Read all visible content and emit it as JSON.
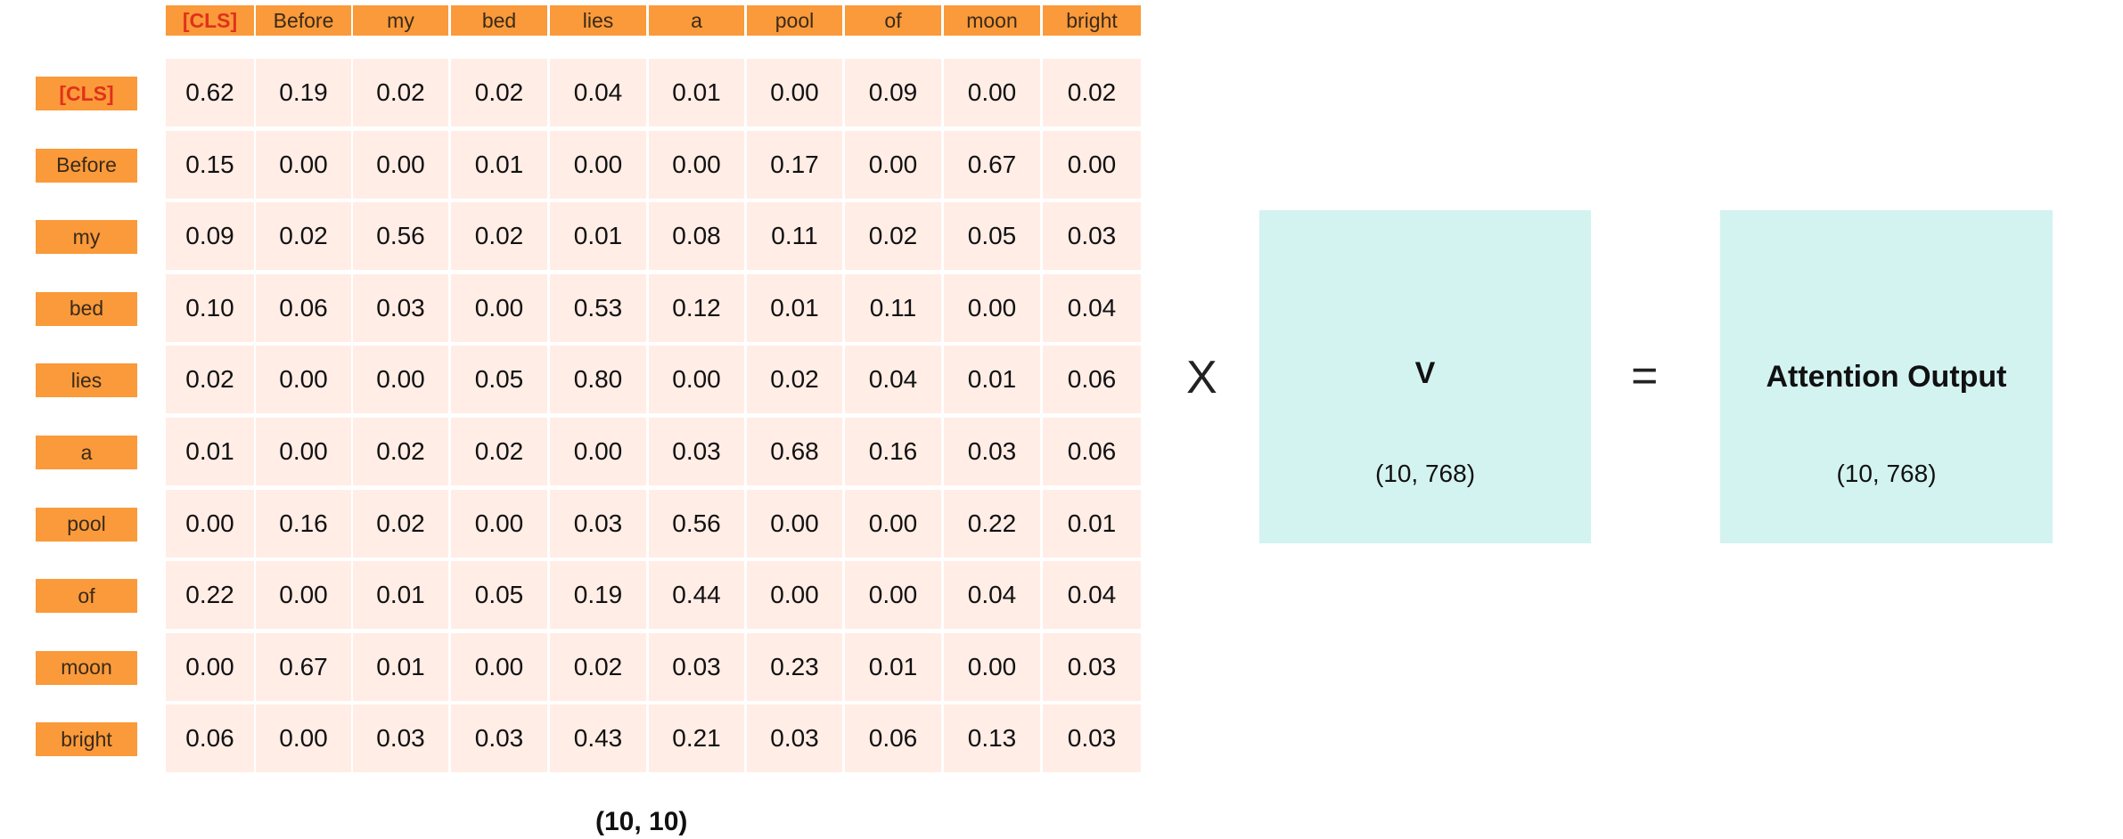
{
  "tokens": [
    "[CLS]",
    "Before",
    "my",
    "bed",
    "lies",
    "a",
    "pool",
    "of",
    "moon",
    "bright"
  ],
  "attention": [
    [
      "0.62",
      "0.19",
      "0.02",
      "0.02",
      "0.04",
      "0.01",
      "0.00",
      "0.09",
      "0.00",
      "0.02"
    ],
    [
      "0.15",
      "0.00",
      "0.00",
      "0.01",
      "0.00",
      "0.00",
      "0.17",
      "0.00",
      "0.67",
      "0.00"
    ],
    [
      "0.09",
      "0.02",
      "0.56",
      "0.02",
      "0.01",
      "0.08",
      "0.11",
      "0.02",
      "0.05",
      "0.03"
    ],
    [
      "0.10",
      "0.06",
      "0.03",
      "0.00",
      "0.53",
      "0.12",
      "0.01",
      "0.11",
      "0.00",
      "0.04"
    ],
    [
      "0.02",
      "0.00",
      "0.00",
      "0.05",
      "0.80",
      "0.00",
      "0.02",
      "0.04",
      "0.01",
      "0.06"
    ],
    [
      "0.01",
      "0.00",
      "0.02",
      "0.02",
      "0.00",
      "0.03",
      "0.68",
      "0.16",
      "0.03",
      "0.06"
    ],
    [
      "0.00",
      "0.16",
      "0.02",
      "0.00",
      "0.03",
      "0.56",
      "0.00",
      "0.00",
      "0.22",
      "0.01"
    ],
    [
      "0.22",
      "0.00",
      "0.01",
      "0.05",
      "0.19",
      "0.44",
      "0.00",
      "0.00",
      "0.04",
      "0.04"
    ],
    [
      "0.00",
      "0.67",
      "0.01",
      "0.00",
      "0.02",
      "0.03",
      "0.23",
      "0.01",
      "0.00",
      "0.03"
    ],
    [
      "0.06",
      "0.00",
      "0.03",
      "0.03",
      "0.43",
      "0.21",
      "0.03",
      "0.06",
      "0.13",
      "0.03"
    ]
  ],
  "attention_shape": "(10, 10)",
  "multiply_symbol": "X",
  "equals_symbol": "=",
  "v_matrix": {
    "title": "V",
    "shape": "(10, 768)"
  },
  "output_matrix": {
    "title": "Attention Output",
    "shape": "(10, 768)"
  },
  "colors": {
    "header_bg": "#fa9a3a",
    "cls_text": "#e0321b",
    "cell_bg": "#ffede6",
    "box_bg": "#d3f3f1"
  }
}
